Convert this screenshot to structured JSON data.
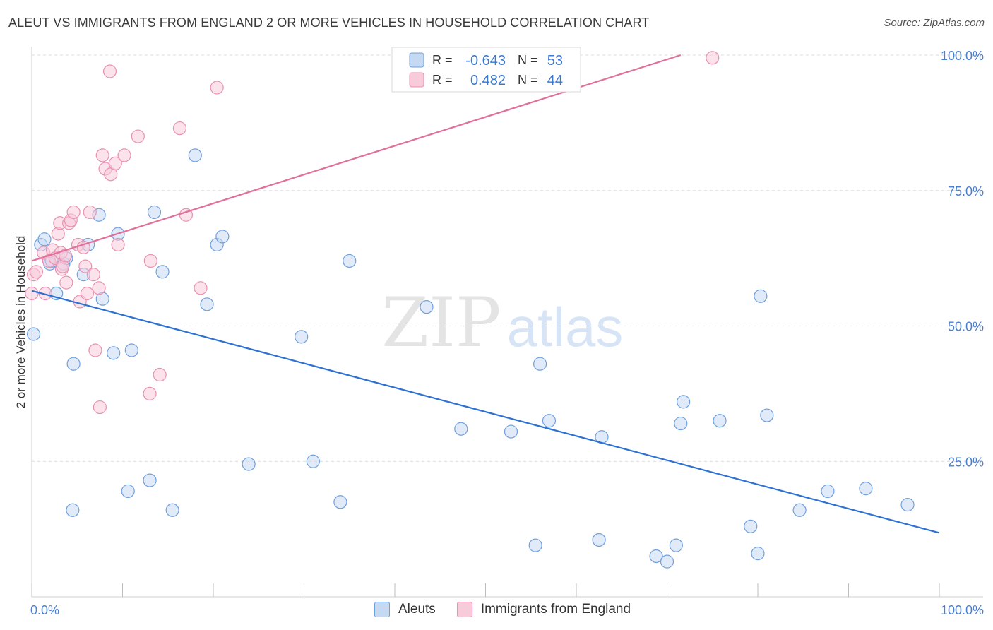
{
  "title": "ALEUT VS IMMIGRANTS FROM ENGLAND 2 OR MORE VEHICLES IN HOUSEHOLD CORRELATION CHART",
  "source": "Source: ZipAtlas.com",
  "watermark": {
    "zip": "ZIP",
    "atlas": "atlas"
  },
  "chart_data": {
    "type": "scatter",
    "xlabel": "",
    "ylabel": "2 or more Vehicles in Household",
    "xlim": [
      0,
      100
    ],
    "ylim": [
      0,
      100
    ],
    "x_tick_labels": {
      "min": "0.0%",
      "max": "100.0%"
    },
    "y_ticks": [
      25,
      50,
      75,
      100
    ],
    "y_tick_labels": [
      "25.0%",
      "50.0%",
      "75.0%",
      "100.0%"
    ],
    "grid": true,
    "legend_position": "bottom",
    "stats_box": [
      {
        "r_label": "R = ",
        "r_value": "-0.643",
        "n_label": "N = ",
        "n_value": "53"
      },
      {
        "r_label": "R = ",
        "r_value": "0.482",
        "n_label": "N = ",
        "n_value": "44"
      }
    ],
    "series": [
      {
        "name": "Aleuts",
        "color": "#6fa0de",
        "fill": "#c6d9f3",
        "trend_color": "#2d72d2",
        "trend": {
          "x": [
            0,
            100
          ],
          "y": [
            56.5,
            11.8
          ]
        },
        "points": [
          [
            0.2,
            48.5
          ],
          [
            1.0,
            65.0
          ],
          [
            1.4,
            66.0
          ],
          [
            2.0,
            61.5
          ],
          [
            2.2,
            62.0
          ],
          [
            2.7,
            56.0
          ],
          [
            3.5,
            61.5
          ],
          [
            3.8,
            62.5
          ],
          [
            4.6,
            43.0
          ],
          [
            4.5,
            16.0
          ],
          [
            5.7,
            59.5
          ],
          [
            6.2,
            65.0
          ],
          [
            7.4,
            70.5
          ],
          [
            7.8,
            55.0
          ],
          [
            9.0,
            45.0
          ],
          [
            9.5,
            67.0
          ],
          [
            10.6,
            19.5
          ],
          [
            11.0,
            45.5
          ],
          [
            13.0,
            21.5
          ],
          [
            13.5,
            71.0
          ],
          [
            14.4,
            60.0
          ],
          [
            15.5,
            16.0
          ],
          [
            18.0,
            81.5
          ],
          [
            19.3,
            54.0
          ],
          [
            20.4,
            65.0
          ],
          [
            21.0,
            66.5
          ],
          [
            23.9,
            24.5
          ],
          [
            29.7,
            48.0
          ],
          [
            31.0,
            25.0
          ],
          [
            34.0,
            17.5
          ],
          [
            35.0,
            62.0
          ],
          [
            43.5,
            53.5
          ],
          [
            47.3,
            31.0
          ],
          [
            52.8,
            30.5
          ],
          [
            55.5,
            9.5
          ],
          [
            56.0,
            43.0
          ],
          [
            57.0,
            32.5
          ],
          [
            62.5,
            10.5
          ],
          [
            62.8,
            29.5
          ],
          [
            68.8,
            7.5
          ],
          [
            70.0,
            6.5
          ],
          [
            71.0,
            9.5
          ],
          [
            71.5,
            32.0
          ],
          [
            71.8,
            36.0
          ],
          [
            75.8,
            32.5
          ],
          [
            79.2,
            13.0
          ],
          [
            80.0,
            8.0
          ],
          [
            80.3,
            55.5
          ],
          [
            81.0,
            33.5
          ],
          [
            84.6,
            16.0
          ],
          [
            87.7,
            19.5
          ],
          [
            91.9,
            20.0
          ],
          [
            96.5,
            17.0
          ]
        ]
      },
      {
        "name": "Immigrants from England",
        "color": "#e891b0",
        "fill": "#f8cbdb",
        "trend_color": "#e0709a",
        "trend": {
          "x": [
            0,
            71.5
          ],
          "y": [
            62.0,
            100
          ]
        },
        "points": [
          [
            0.0,
            56.0
          ],
          [
            0.2,
            59.5
          ],
          [
            0.5,
            60.0
          ],
          [
            1.3,
            63.5
          ],
          [
            1.5,
            56.0
          ],
          [
            1.9,
            62.0
          ],
          [
            2.3,
            64.0
          ],
          [
            2.6,
            62.5
          ],
          [
            2.9,
            67.0
          ],
          [
            3.1,
            69.0
          ],
          [
            3.2,
            63.5
          ],
          [
            3.3,
            60.5
          ],
          [
            3.4,
            61.0
          ],
          [
            3.7,
            63.0
          ],
          [
            3.8,
            58.0
          ],
          [
            4.1,
            69.0
          ],
          [
            4.3,
            69.5
          ],
          [
            4.6,
            71.0
          ],
          [
            5.1,
            65.0
          ],
          [
            5.3,
            54.5
          ],
          [
            5.7,
            64.5
          ],
          [
            5.9,
            61.0
          ],
          [
            6.1,
            56.0
          ],
          [
            6.4,
            71.0
          ],
          [
            6.8,
            59.5
          ],
          [
            7.0,
            45.5
          ],
          [
            7.4,
            57.0
          ],
          [
            7.5,
            35.0
          ],
          [
            7.8,
            81.5
          ],
          [
            8.1,
            79.0
          ],
          [
            8.6,
            97.0
          ],
          [
            8.7,
            78.0
          ],
          [
            9.2,
            80.0
          ],
          [
            9.5,
            65.0
          ],
          [
            10.2,
            81.5
          ],
          [
            11.7,
            85.0
          ],
          [
            13.0,
            37.5
          ],
          [
            13.1,
            62.0
          ],
          [
            14.1,
            41.0
          ],
          [
            16.3,
            86.5
          ],
          [
            17.0,
            70.5
          ],
          [
            18.6,
            57.0
          ],
          [
            20.4,
            94.0
          ],
          [
            75.0,
            99.5
          ]
        ]
      }
    ]
  }
}
